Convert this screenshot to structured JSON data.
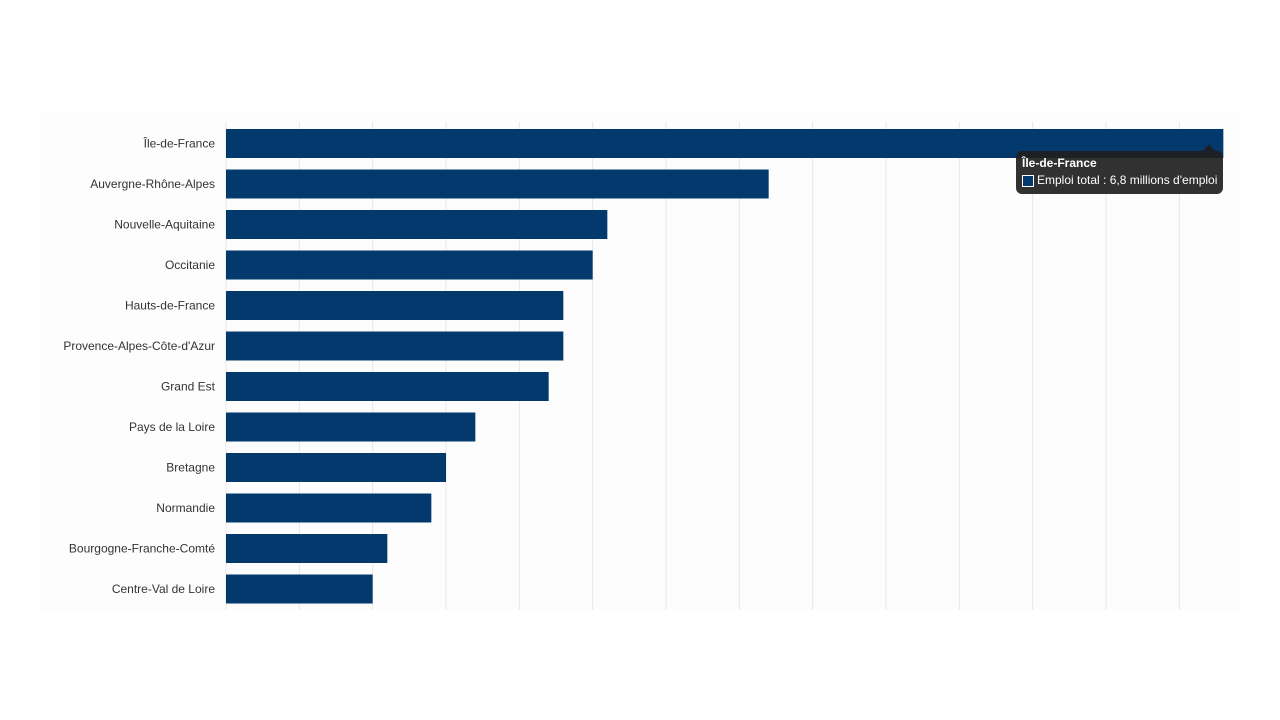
{
  "chart_data": {
    "type": "bar",
    "orientation": "horizontal",
    "categories": [
      "Île-de-France",
      "Auvergne-Rhône-Alpes",
      "Nouvelle-Aquitaine",
      "Occitanie",
      "Hauts-de-France",
      "Provence-Alpes-Côte-d'Azur",
      "Grand Est",
      "Pays de la Loire",
      "Bretagne",
      "Normandie",
      "Bourgogne-Franche-Comté",
      "Centre-Val de Loire"
    ],
    "series": [
      {
        "name": "Emploi total",
        "values": [
          6.8,
          3.7,
          2.6,
          2.5,
          2.3,
          2.3,
          2.2,
          1.7,
          1.5,
          1.4,
          1.1,
          1.0
        ]
      }
    ],
    "unit": "millions d'emploi",
    "xlim": [
      0,
      6.9
    ],
    "grid_step": 0.5,
    "grid": true,
    "title": "",
    "xlabel": "",
    "ylabel": ""
  },
  "colors": {
    "bar": "#03396c",
    "grid": "#e6e6e6",
    "tooltip_bg": "#202020"
  },
  "tooltip": {
    "title": "Île-de-France",
    "text": "Emploi total : 6,8 millions d'emploi"
  }
}
